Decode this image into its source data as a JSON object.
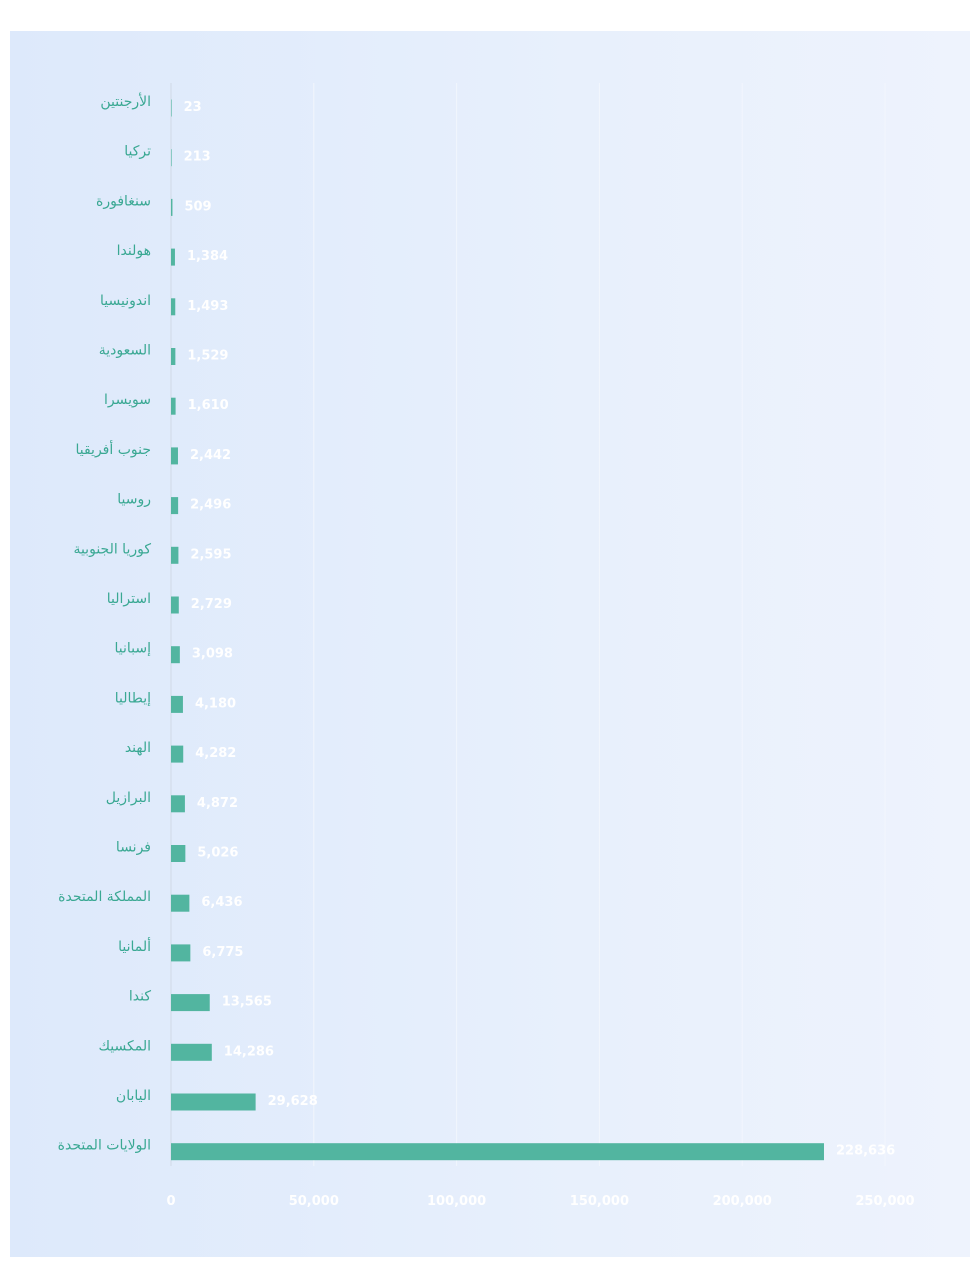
{
  "chart_data": {
    "type": "bar",
    "orientation": "horizontal",
    "categories": [
      "الأرجنتين",
      "تركيا",
      "سنغافورة",
      "هولندا",
      "اندونيسيا",
      "السعودية",
      "سويسرا",
      "جنوب أفريقيا",
      "روسيا",
      "كوريا الجنوبية",
      "استراليا",
      "إسبانيا",
      "إيطاليا",
      "الهند",
      "البرازيل",
      "فرنسا",
      "المملكة المتحدة",
      "ألمانيا",
      "كندا",
      "المكسيك",
      "اليابان",
      "الولايات المتحدة"
    ],
    "values": [
      23,
      213,
      509,
      1384,
      1493,
      1529,
      1610,
      2442,
      2496,
      2595,
      2729,
      3098,
      4180,
      4282,
      4872,
      5026,
      6436,
      6775,
      13565,
      14286,
      29628,
      228636
    ],
    "value_labels": [
      "23",
      "213",
      "509",
      "1,384",
      "1,493",
      "1,529",
      "1,610",
      "2,442",
      "2,496",
      "2,595",
      "2,729",
      "3,098",
      "4,180",
      "4,282",
      "4,872",
      "5,026",
      "6,436",
      "6,775",
      "13,565",
      "14,286",
      "29,628",
      "228,636"
    ],
    "x_ticks": [
      0,
      50000,
      100000,
      150000,
      200000,
      250000
    ],
    "x_tick_labels": [
      "0",
      "50,000",
      "100,000",
      "150,000",
      "200,000",
      "250,000"
    ],
    "xlim": [
      0,
      250000
    ],
    "grid": "vertical",
    "colors": {
      "bar": "#52b5a0",
      "category_label": "#3aa893",
      "value_label": "#ffffff",
      "tick_label": "#ffffff",
      "gridline": "#f2f6fd",
      "baseline": "#cfd9e6"
    }
  }
}
